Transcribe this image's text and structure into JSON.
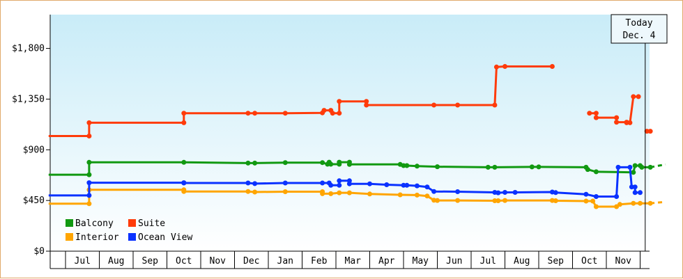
{
  "chart_data": {
    "type": "line",
    "title": "",
    "xlabel": "",
    "ylabel": "",
    "ylim": [
      0,
      2100
    ],
    "y_ticks": [
      {
        "value": 0,
        "label": "$0"
      },
      {
        "value": 450,
        "label": "$450"
      },
      {
        "value": 900,
        "label": "$900"
      },
      {
        "value": 1350,
        "label": "$1,350"
      },
      {
        "value": 1800,
        "label": "$1,800"
      }
    ],
    "x_months": [
      "Jul",
      "Aug",
      "Sep",
      "Oct",
      "Nov",
      "Dec",
      "Jan",
      "Feb",
      "Mar",
      "Apr",
      "May",
      "Jun",
      "Jul",
      "Aug",
      "Sep",
      "Oct",
      "Nov"
    ],
    "x_range": [
      0,
      17.3
    ],
    "grid": false,
    "background": "gradient light blue to white",
    "legend_position": "bottom-left",
    "today_marker": {
      "label": "Today",
      "date": "Dec. 4",
      "x": 17.15
    },
    "series": [
      {
        "name": "Balcony",
        "color": "#119911",
        "points": [
          [
            -0.5,
            679
          ],
          [
            0.7,
            679
          ],
          [
            0.7,
            789
          ],
          [
            3.5,
            789
          ],
          [
            5.4,
            782
          ],
          [
            5.6,
            782
          ],
          [
            6.5,
            786
          ],
          [
            7.6,
            786
          ],
          [
            7.75,
            772
          ],
          [
            7.8,
            790
          ],
          [
            7.85,
            772
          ],
          [
            8.1,
            772
          ],
          [
            8.1,
            790
          ],
          [
            8.4,
            790
          ],
          [
            8.4,
            770
          ],
          [
            9.9,
            770
          ],
          [
            10.0,
            760
          ],
          [
            10.1,
            760
          ],
          [
            10.4,
            755
          ],
          [
            11.0,
            750
          ],
          [
            12.5,
            745
          ],
          [
            12.7,
            745
          ],
          [
            13.8,
            748
          ],
          [
            14.0,
            748
          ],
          [
            15.4,
            745
          ],
          [
            15.45,
            725
          ],
          [
            15.7,
            705
          ],
          [
            16.8,
            700
          ],
          [
            16.85,
            760
          ],
          [
            17.0,
            760
          ],
          [
            17.05,
            745
          ],
          [
            17.3,
            745
          ]
        ],
        "projection": [
          [
            17.3,
            745
          ],
          [
            17.75,
            770
          ]
        ]
      },
      {
        "name": "Suite",
        "color": "#ff3b0a",
        "points": [
          [
            -0.5,
            1022
          ],
          [
            0.7,
            1022
          ],
          [
            0.7,
            1140
          ],
          [
            3.5,
            1140
          ],
          [
            3.5,
            1225
          ],
          [
            5.4,
            1225
          ],
          [
            5.6,
            1225
          ],
          [
            6.5,
            1225
          ],
          [
            7.6,
            1228
          ],
          [
            7.65,
            1250
          ],
          [
            7.85,
            1250
          ],
          [
            7.9,
            1225
          ],
          [
            8.1,
            1225
          ],
          [
            8.1,
            1330
          ],
          [
            8.9,
            1330
          ],
          [
            8.9,
            1297
          ],
          [
            10.9,
            1297
          ],
          [
            11.6,
            1297
          ],
          [
            12.7,
            1297
          ],
          [
            12.75,
            1635
          ],
          [
            13.0,
            1640
          ],
          [
            14.4,
            1640
          ]
        ],
        "segments": [
          [
            [
              15.5,
              1225
            ],
            [
              15.7,
              1225
            ],
            [
              15.7,
              1185
            ],
            [
              16.3,
              1185
            ],
            [
              16.3,
              1145
            ],
            [
              16.6,
              1145
            ],
            [
              16.6,
              1140
            ],
            [
              16.7,
              1140
            ],
            [
              16.8,
              1372
            ],
            [
              16.95,
              1372
            ]
          ],
          [
            [
              17.2,
              1065
            ],
            [
              17.3,
              1065
            ]
          ]
        ]
      },
      {
        "name": "Interior",
        "color": "#ffa500",
        "points": [
          [
            -0.5,
            421
          ],
          [
            0.7,
            421
          ],
          [
            0.7,
            545
          ],
          [
            3.5,
            545
          ],
          [
            3.5,
            530
          ],
          [
            5.4,
            530
          ],
          [
            5.6,
            525
          ],
          [
            6.5,
            528
          ],
          [
            7.6,
            528
          ],
          [
            7.6,
            510
          ],
          [
            7.85,
            510
          ],
          [
            8.1,
            518
          ],
          [
            8.4,
            518
          ],
          [
            9.0,
            508
          ],
          [
            9.9,
            500
          ],
          [
            10.4,
            498
          ],
          [
            10.7,
            490
          ],
          [
            10.9,
            452
          ],
          [
            11.0,
            450
          ],
          [
            11.6,
            450
          ],
          [
            12.7,
            448
          ],
          [
            12.8,
            448
          ],
          [
            13.0,
            450
          ],
          [
            14.4,
            450
          ],
          [
            14.5,
            448
          ],
          [
            15.4,
            445
          ],
          [
            15.6,
            445
          ],
          [
            15.7,
            395
          ],
          [
            16.3,
            395
          ],
          [
            16.4,
            415
          ],
          [
            16.8,
            425
          ],
          [
            17.0,
            425
          ],
          [
            17.3,
            425
          ]
        ],
        "projection": [
          [
            17.3,
            425
          ],
          [
            17.75,
            438
          ]
        ]
      },
      {
        "name": "Ocean View",
        "color": "#0a32ff",
        "points": [
          [
            -0.5,
            495
          ],
          [
            0.7,
            495
          ],
          [
            0.7,
            608
          ],
          [
            3.5,
            608
          ],
          [
            3.5,
            605
          ],
          [
            5.4,
            605
          ],
          [
            5.6,
            600
          ],
          [
            6.5,
            605
          ],
          [
            7.6,
            605
          ],
          [
            7.8,
            605
          ],
          [
            7.85,
            585
          ],
          [
            8.1,
            585
          ],
          [
            8.1,
            625
          ],
          [
            8.4,
            625
          ],
          [
            8.4,
            598
          ],
          [
            9.0,
            598
          ],
          [
            9.5,
            590
          ],
          [
            10.0,
            585
          ],
          [
            10.1,
            585
          ],
          [
            10.4,
            580
          ],
          [
            10.7,
            570
          ],
          [
            10.9,
            530
          ],
          [
            11.6,
            528
          ],
          [
            12.7,
            522
          ],
          [
            12.8,
            518
          ],
          [
            13.0,
            522
          ],
          [
            13.3,
            522
          ],
          [
            14.4,
            525
          ],
          [
            14.5,
            520
          ],
          [
            15.4,
            505
          ],
          [
            15.7,
            485
          ],
          [
            16.3,
            485
          ],
          [
            16.35,
            745
          ],
          [
            16.7,
            745
          ],
          [
            16.75,
            570
          ],
          [
            16.85,
            570
          ],
          [
            16.85,
            520
          ],
          [
            17.0,
            520
          ]
        ]
      }
    ]
  }
}
